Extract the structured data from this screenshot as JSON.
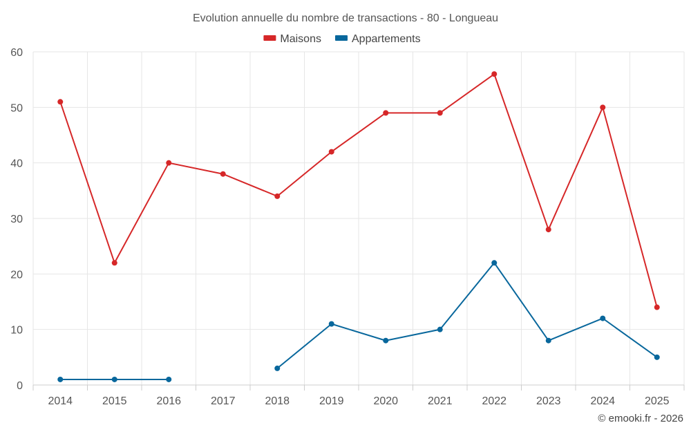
{
  "chart_data": {
    "type": "line",
    "title": "Evolution annuelle du nombre de transactions - 80 - Longueau",
    "categories": [
      "2014",
      "2015",
      "2016",
      "2017",
      "2018",
      "2019",
      "2020",
      "2021",
      "2022",
      "2023",
      "2024",
      "2025"
    ],
    "series": [
      {
        "name": "Maisons",
        "color": "#d62728",
        "values": [
          51,
          22,
          40,
          38,
          34,
          42,
          49,
          49,
          56,
          28,
          50,
          14
        ]
      },
      {
        "name": "Appartements",
        "color": "#08679c",
        "values": [
          1,
          1,
          1,
          null,
          3,
          11,
          8,
          10,
          22,
          8,
          12,
          5
        ]
      }
    ],
    "ylim": [
      0,
      60
    ],
    "yticks": [
      0,
      10,
      20,
      30,
      40,
      50,
      60
    ],
    "xlabel": "",
    "ylabel": "",
    "grid": true,
    "legend_position": "top-center"
  },
  "footer": {
    "credit": "© emooki.fr - 2026"
  }
}
